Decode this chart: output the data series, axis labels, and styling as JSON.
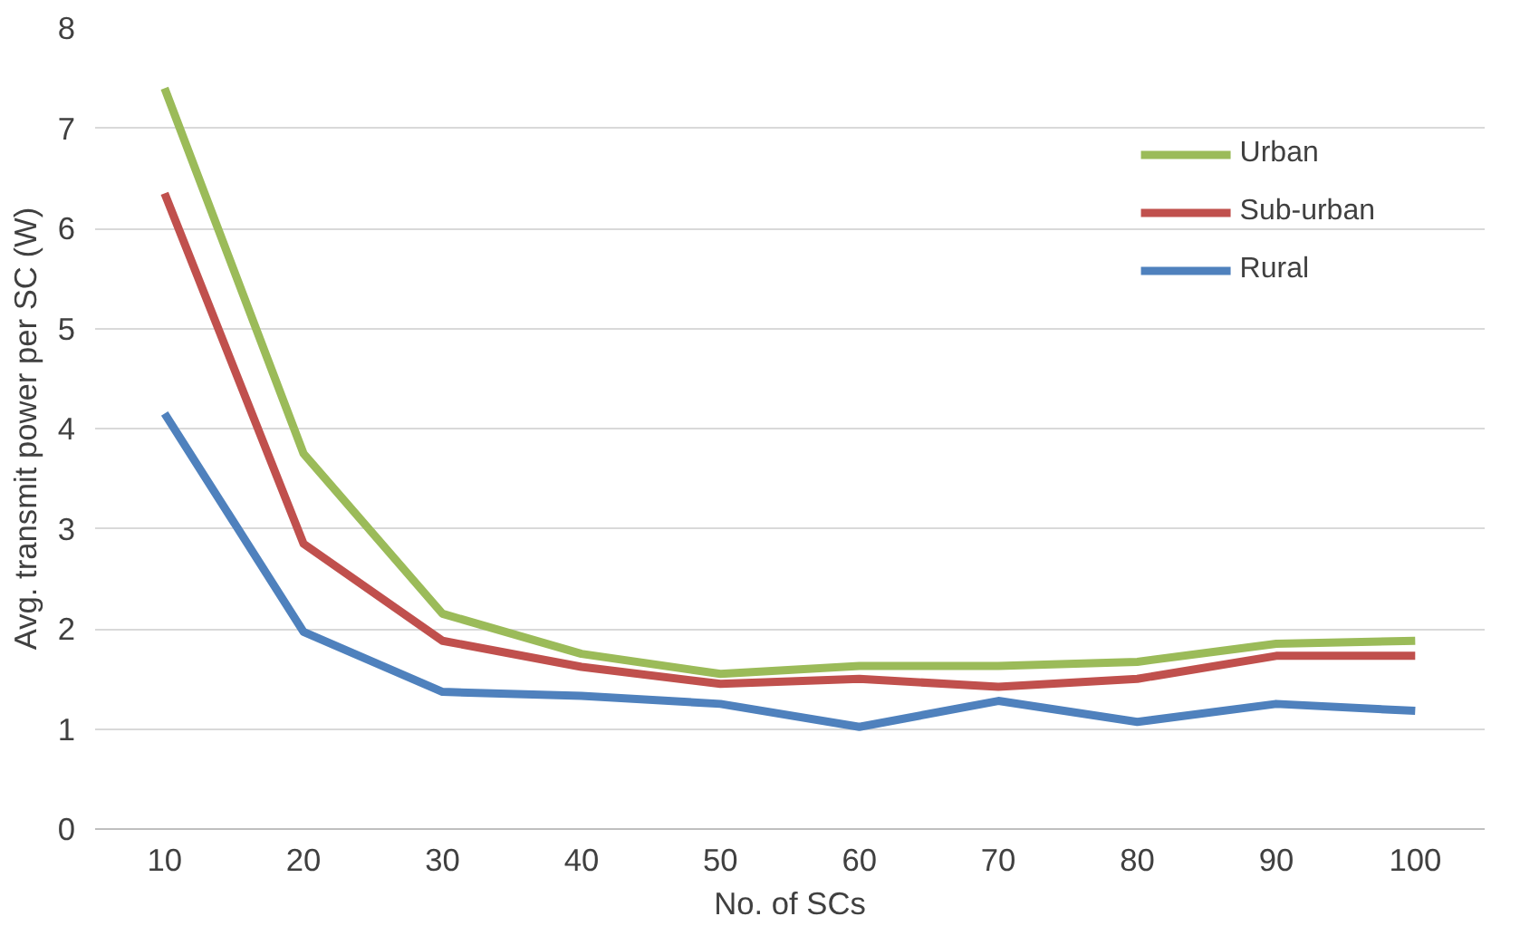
{
  "chart_data": {
    "type": "line",
    "xlabel": "No. of SCs",
    "ylabel": "Avg. transmit power per SC (W)",
    "categories": [
      "10",
      "20",
      "30",
      "40",
      "50",
      "60",
      "70",
      "80",
      "90",
      "100"
    ],
    "series": [
      {
        "name": "Urban",
        "color": "#9bbb59",
        "values": [
          7.4,
          3.75,
          2.15,
          1.75,
          1.55,
          1.63,
          1.63,
          1.67,
          1.85,
          1.88
        ]
      },
      {
        "name": "Sub-urban",
        "color": "#c0504d",
        "values": [
          6.35,
          2.85,
          1.88,
          1.62,
          1.45,
          1.5,
          1.42,
          1.5,
          1.73,
          1.73
        ]
      },
      {
        "name": "Rural",
        "color": "#4f81bd",
        "values": [
          4.15,
          1.97,
          1.37,
          1.33,
          1.25,
          1.02,
          1.28,
          1.07,
          1.25,
          1.18
        ]
      }
    ],
    "ylim": [
      0,
      8
    ],
    "yticks": [
      0,
      1,
      2,
      3,
      4,
      5,
      6,
      7,
      8
    ],
    "grid": "y",
    "legend": "top right",
    "marker": "none",
    "line_style": "solid"
  }
}
